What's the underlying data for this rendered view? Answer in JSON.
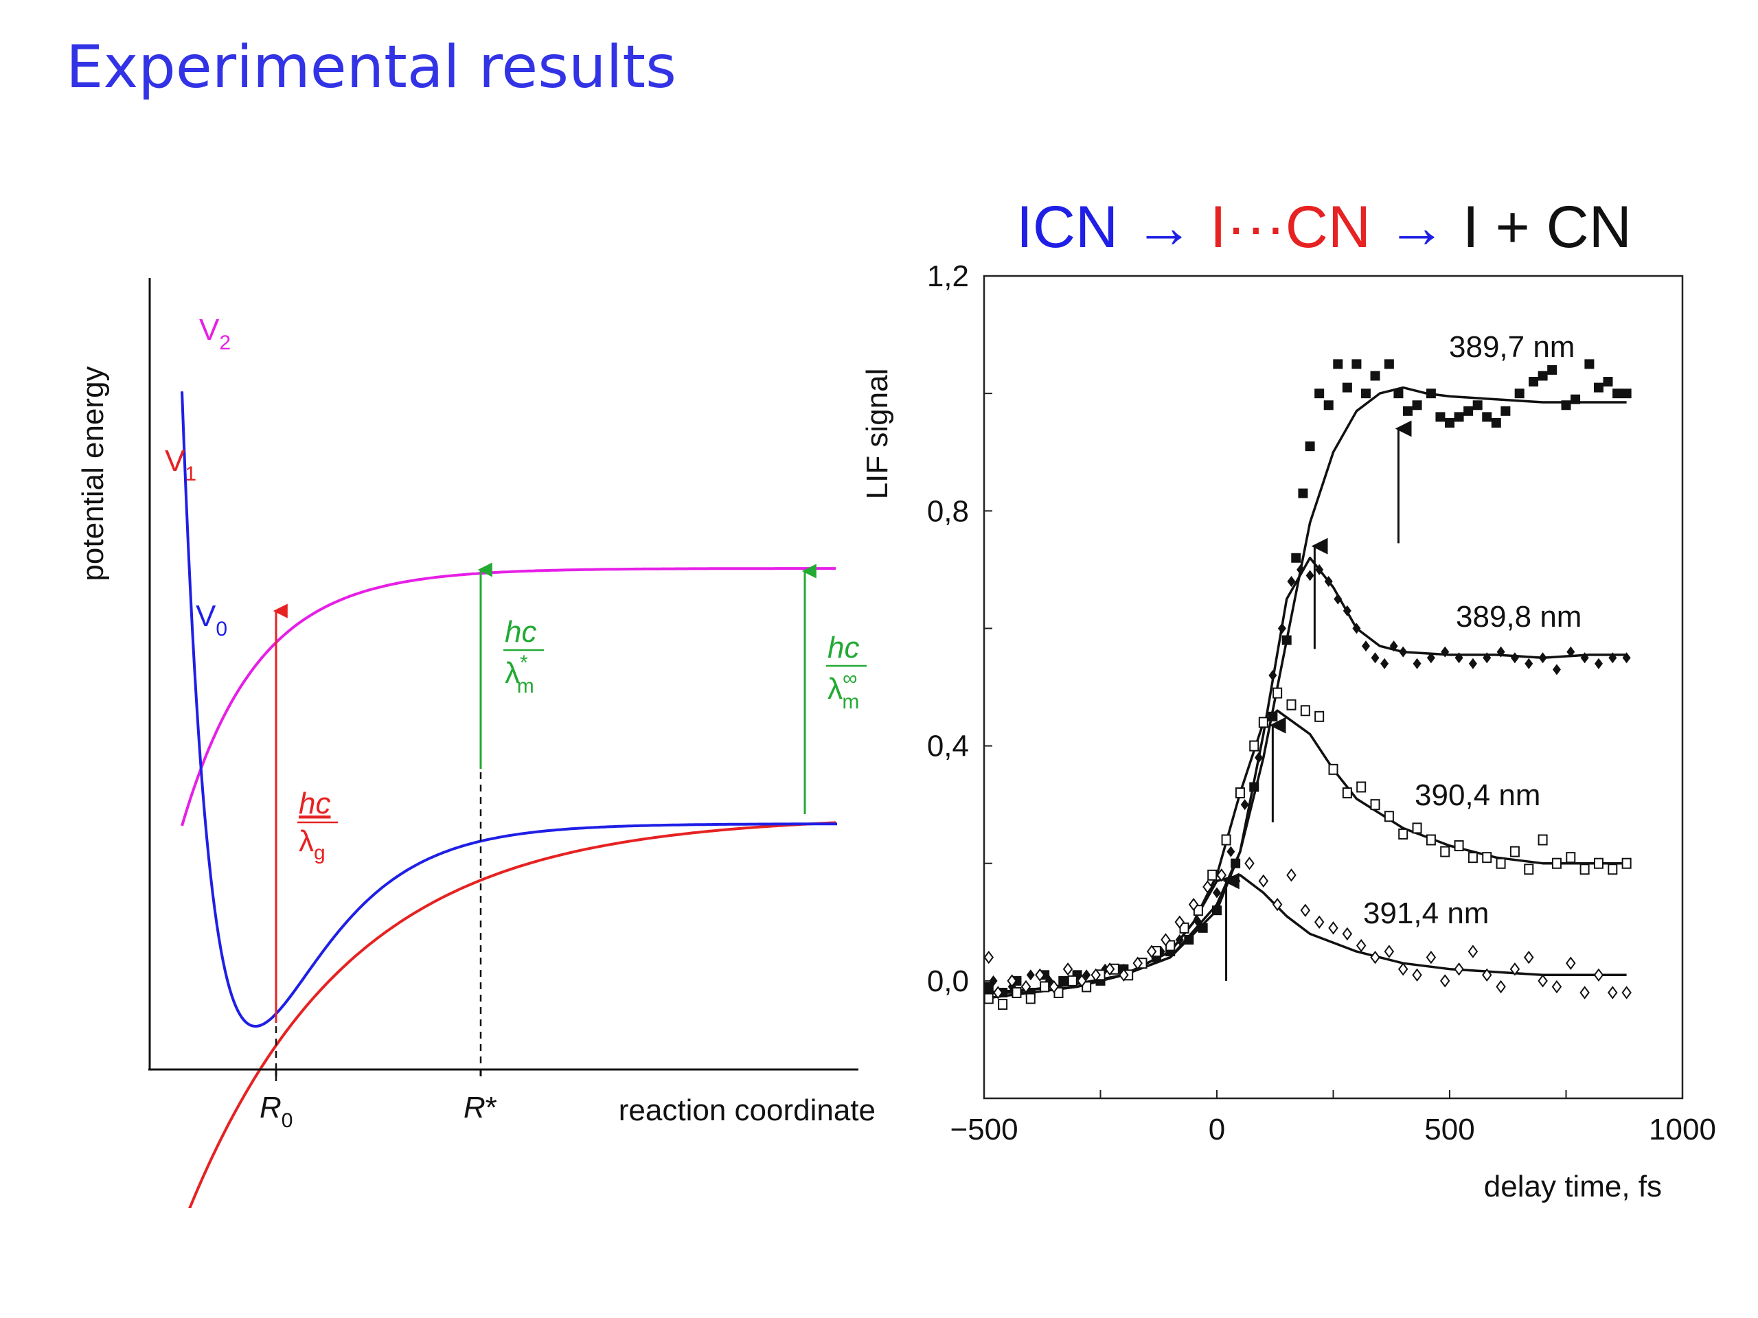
{
  "slide": {
    "title": "Experimental results"
  },
  "colors": {
    "title": "#3333e6",
    "v0": "#1f1fe6",
    "v1": "#e62222",
    "v2": "#e61fe6",
    "green": "#22aa33",
    "black": "#111111"
  },
  "left_diagram": {
    "y_axis_label": "potential energy",
    "x_axis_label": "reaction coordinate",
    "curves": [
      {
        "name": "V",
        "subscript": "0",
        "color_key": "v0"
      },
      {
        "name": "V",
        "subscript": "1",
        "color_key": "v1"
      },
      {
        "name": "V",
        "subscript": "2",
        "color_key": "v2"
      }
    ],
    "ticks": [
      {
        "main": "R",
        "sub": "0",
        "italic": true
      },
      {
        "main": "R",
        "sup": "*",
        "italic": true
      }
    ],
    "transitions": [
      {
        "num": "hc",
        "den": "λ",
        "den_sub": "g",
        "den_sup": "",
        "color_key": "v1"
      },
      {
        "num": "hc",
        "den": "λ",
        "den_sub": "m",
        "den_sup": "*",
        "color_key": "green"
      },
      {
        "num": "hc",
        "den": "λ",
        "den_sub": "m",
        "den_sup": "∞",
        "color_key": "green"
      }
    ]
  },
  "reaction": {
    "parts": [
      {
        "text": "ICN",
        "color_key": "v0"
      },
      {
        "text": " → ",
        "color_key": "v0"
      },
      {
        "text": "I···CN",
        "color_key": "v1"
      },
      {
        "text": " → ",
        "color_key": "v0"
      },
      {
        "text": "I + CN",
        "color_key": "black"
      }
    ]
  },
  "chart_data": {
    "type": "scatter",
    "title": "",
    "xlabel": "delay time, fs",
    "ylabel": "LIF signal",
    "xlim": [
      -500,
      1000
    ],
    "ylim": [
      -0.2,
      1.2
    ],
    "x_ticks": [
      -500,
      0,
      500,
      1000
    ],
    "x_tick_labels": [
      "−500",
      "0",
      "500",
      "1000"
    ],
    "y_ticks": [
      0.0,
      0.4,
      0.8,
      1.2
    ],
    "y_tick_labels": [
      "0,0",
      "0,4",
      "0,8",
      "1,2"
    ],
    "grid": false,
    "series": [
      {
        "name": "389,7 nm",
        "marker": "square-filled",
        "peak_arrow_x": 390,
        "fit": [
          [
            -500,
            -0.02
          ],
          [
            -400,
            -0.015
          ],
          [
            -300,
            -0.005
          ],
          [
            -200,
            0.01
          ],
          [
            -100,
            0.04
          ],
          [
            0,
            0.12
          ],
          [
            50,
            0.22
          ],
          [
            100,
            0.38
          ],
          [
            150,
            0.58
          ],
          [
            200,
            0.78
          ],
          [
            250,
            0.9
          ],
          [
            300,
            0.97
          ],
          [
            350,
            1.0
          ],
          [
            400,
            1.01
          ],
          [
            450,
            1.0
          ],
          [
            500,
            0.995
          ],
          [
            600,
            0.99
          ],
          [
            700,
            0.985
          ],
          [
            800,
            0.985
          ],
          [
            880,
            0.985
          ]
        ],
        "points": [
          [
            -490,
            -0.01
          ],
          [
            -460,
            -0.02
          ],
          [
            -430,
            0.0
          ],
          [
            -400,
            -0.02
          ],
          [
            -370,
            0.01
          ],
          [
            -330,
            0.0
          ],
          [
            -300,
            0.01
          ],
          [
            -250,
            0.0
          ],
          [
            -200,
            0.02
          ],
          [
            -160,
            0.03
          ],
          [
            -130,
            0.04
          ],
          [
            -100,
            0.05
          ],
          [
            -60,
            0.07
          ],
          [
            -30,
            0.09
          ],
          [
            0,
            0.12
          ],
          [
            40,
            0.2
          ],
          [
            80,
            0.33
          ],
          [
            120,
            0.45
          ],
          [
            150,
            0.58
          ],
          [
            170,
            0.72
          ],
          [
            185,
            0.83
          ],
          [
            200,
            0.91
          ],
          [
            220,
            1.0
          ],
          [
            240,
            0.98
          ],
          [
            260,
            1.05
          ],
          [
            280,
            1.01
          ],
          [
            300,
            1.05
          ],
          [
            320,
            1.0
          ],
          [
            340,
            1.03
          ],
          [
            370,
            1.05
          ],
          [
            390,
            1.0
          ],
          [
            410,
            0.97
          ],
          [
            430,
            0.98
          ],
          [
            460,
            1.0
          ],
          [
            480,
            0.96
          ],
          [
            500,
            0.95
          ],
          [
            520,
            0.96
          ],
          [
            540,
            0.97
          ],
          [
            560,
            0.98
          ],
          [
            580,
            0.96
          ],
          [
            600,
            0.95
          ],
          [
            620,
            0.97
          ],
          [
            650,
            1.0
          ],
          [
            680,
            1.02
          ],
          [
            700,
            1.03
          ],
          [
            720,
            1.04
          ],
          [
            750,
            0.98
          ],
          [
            770,
            0.99
          ],
          [
            800,
            1.05
          ],
          [
            820,
            1.01
          ],
          [
            840,
            1.02
          ],
          [
            860,
            1.0
          ],
          [
            880,
            1.0
          ]
        ]
      },
      {
        "name": "389,8 nm",
        "marker": "diamond-filled",
        "peak_arrow_x": 210,
        "fit": [
          [
            -500,
            -0.02
          ],
          [
            -400,
            -0.015
          ],
          [
            -300,
            -0.005
          ],
          [
            -200,
            0.01
          ],
          [
            -100,
            0.04
          ],
          [
            0,
            0.13
          ],
          [
            50,
            0.22
          ],
          [
            100,
            0.42
          ],
          [
            150,
            0.65
          ],
          [
            200,
            0.72
          ],
          [
            250,
            0.67
          ],
          [
            300,
            0.6
          ],
          [
            350,
            0.57
          ],
          [
            400,
            0.56
          ],
          [
            500,
            0.555
          ],
          [
            600,
            0.555
          ],
          [
            700,
            0.55
          ],
          [
            800,
            0.555
          ],
          [
            880,
            0.555
          ]
        ],
        "points": [
          [
            -480,
            0.0
          ],
          [
            -440,
            -0.01
          ],
          [
            -400,
            0.01
          ],
          [
            -360,
            0.0
          ],
          [
            -320,
            0.02
          ],
          [
            -280,
            0.01
          ],
          [
            -240,
            0.02
          ],
          [
            -200,
            0.02
          ],
          [
            -160,
            0.03
          ],
          [
            -120,
            0.05
          ],
          [
            -80,
            0.07
          ],
          [
            -40,
            0.1
          ],
          [
            0,
            0.15
          ],
          [
            30,
            0.22
          ],
          [
            60,
            0.3
          ],
          [
            90,
            0.38
          ],
          [
            120,
            0.52
          ],
          [
            140,
            0.6
          ],
          [
            160,
            0.68
          ],
          [
            180,
            0.7
          ],
          [
            200,
            0.69
          ],
          [
            220,
            0.7
          ],
          [
            240,
            0.68
          ],
          [
            260,
            0.65
          ],
          [
            280,
            0.63
          ],
          [
            300,
            0.6
          ],
          [
            320,
            0.57
          ],
          [
            340,
            0.55
          ],
          [
            360,
            0.54
          ],
          [
            380,
            0.57
          ],
          [
            400,
            0.56
          ],
          [
            430,
            0.54
          ],
          [
            460,
            0.55
          ],
          [
            490,
            0.56
          ],
          [
            520,
            0.55
          ],
          [
            550,
            0.54
          ],
          [
            580,
            0.55
          ],
          [
            610,
            0.56
          ],
          [
            640,
            0.55
          ],
          [
            670,
            0.54
          ],
          [
            700,
            0.55
          ],
          [
            730,
            0.53
          ],
          [
            760,
            0.56
          ],
          [
            790,
            0.55
          ],
          [
            820,
            0.54
          ],
          [
            850,
            0.55
          ],
          [
            880,
            0.55
          ]
        ]
      },
      {
        "name": "390,4 nm",
        "marker": "square-open",
        "peak_arrow_x": 120,
        "fit": [
          [
            -500,
            -0.03
          ],
          [
            -400,
            -0.02
          ],
          [
            -300,
            -0.01
          ],
          [
            -200,
            0.01
          ],
          [
            -100,
            0.05
          ],
          [
            -50,
            0.1
          ],
          [
            0,
            0.18
          ],
          [
            50,
            0.32
          ],
          [
            100,
            0.44
          ],
          [
            130,
            0.46
          ],
          [
            200,
            0.42
          ],
          [
            250,
            0.36
          ],
          [
            300,
            0.31
          ],
          [
            400,
            0.26
          ],
          [
            500,
            0.23
          ],
          [
            600,
            0.21
          ],
          [
            700,
            0.2
          ],
          [
            800,
            0.2
          ],
          [
            880,
            0.2
          ]
        ],
        "points": [
          [
            -490,
            -0.03
          ],
          [
            -460,
            -0.04
          ],
          [
            -430,
            -0.02
          ],
          [
            -400,
            -0.03
          ],
          [
            -370,
            -0.01
          ],
          [
            -340,
            -0.02
          ],
          [
            -310,
            0.0
          ],
          [
            -280,
            -0.01
          ],
          [
            -250,
            0.01
          ],
          [
            -220,
            0.02
          ],
          [
            -190,
            0.01
          ],
          [
            -160,
            0.03
          ],
          [
            -130,
            0.05
          ],
          [
            -100,
            0.06
          ],
          [
            -70,
            0.09
          ],
          [
            -40,
            0.12
          ],
          [
            -10,
            0.18
          ],
          [
            20,
            0.24
          ],
          [
            50,
            0.32
          ],
          [
            80,
            0.4
          ],
          [
            100,
            0.44
          ],
          [
            130,
            0.49
          ],
          [
            160,
            0.47
          ],
          [
            190,
            0.46
          ],
          [
            220,
            0.45
          ],
          [
            250,
            0.36
          ],
          [
            280,
            0.32
          ],
          [
            310,
            0.33
          ],
          [
            340,
            0.3
          ],
          [
            370,
            0.28
          ],
          [
            400,
            0.25
          ],
          [
            430,
            0.26
          ],
          [
            460,
            0.24
          ],
          [
            490,
            0.22
          ],
          [
            520,
            0.23
          ],
          [
            550,
            0.21
          ],
          [
            580,
            0.21
          ],
          [
            610,
            0.2
          ],
          [
            640,
            0.22
          ],
          [
            670,
            0.19
          ],
          [
            700,
            0.24
          ],
          [
            730,
            0.2
          ],
          [
            760,
            0.21
          ],
          [
            790,
            0.19
          ],
          [
            820,
            0.2
          ],
          [
            850,
            0.19
          ],
          [
            880,
            0.2
          ]
        ]
      },
      {
        "name": "391,4 nm",
        "marker": "diamond-open",
        "peak_arrow_x": 20,
        "fit": [
          [
            -500,
            -0.02
          ],
          [
            -400,
            -0.02
          ],
          [
            -300,
            -0.01
          ],
          [
            -200,
            0.01
          ],
          [
            -100,
            0.05
          ],
          [
            -50,
            0.1
          ],
          [
            0,
            0.17
          ],
          [
            50,
            0.18
          ],
          [
            100,
            0.15
          ],
          [
            150,
            0.11
          ],
          [
            200,
            0.08
          ],
          [
            300,
            0.05
          ],
          [
            400,
            0.03
          ],
          [
            500,
            0.02
          ],
          [
            600,
            0.015
          ],
          [
            700,
            0.01
          ],
          [
            800,
            0.01
          ],
          [
            880,
            0.01
          ]
        ],
        "points": [
          [
            -490,
            0.04
          ],
          [
            -470,
            -0.02
          ],
          [
            -440,
            0.0
          ],
          [
            -410,
            -0.01
          ],
          [
            -380,
            0.01
          ],
          [
            -350,
            -0.01
          ],
          [
            -320,
            0.02
          ],
          [
            -290,
            0.0
          ],
          [
            -260,
            0.01
          ],
          [
            -230,
            0.02
          ],
          [
            -200,
            0.01
          ],
          [
            -170,
            0.03
          ],
          [
            -140,
            0.05
          ],
          [
            -110,
            0.07
          ],
          [
            -80,
            0.1
          ],
          [
            -50,
            0.13
          ],
          [
            -20,
            0.16
          ],
          [
            10,
            0.18
          ],
          [
            40,
            0.17
          ],
          [
            70,
            0.2
          ],
          [
            100,
            0.17
          ],
          [
            130,
            0.13
          ],
          [
            160,
            0.18
          ],
          [
            190,
            0.12
          ],
          [
            220,
            0.1
          ],
          [
            250,
            0.09
          ],
          [
            280,
            0.08
          ],
          [
            310,
            0.06
          ],
          [
            340,
            0.04
          ],
          [
            370,
            0.05
          ],
          [
            400,
            0.02
          ],
          [
            430,
            0.01
          ],
          [
            460,
            0.04
          ],
          [
            490,
            0.0
          ],
          [
            520,
            0.02
          ],
          [
            550,
            0.05
          ],
          [
            580,
            0.01
          ],
          [
            610,
            -0.01
          ],
          [
            640,
            0.02
          ],
          [
            670,
            0.04
          ],
          [
            700,
            0.0
          ],
          [
            730,
            -0.01
          ],
          [
            760,
            0.03
          ],
          [
            790,
            -0.02
          ],
          [
            820,
            0.01
          ],
          [
            850,
            -0.02
          ],
          [
            880,
            -0.02
          ]
        ]
      }
    ]
  }
}
